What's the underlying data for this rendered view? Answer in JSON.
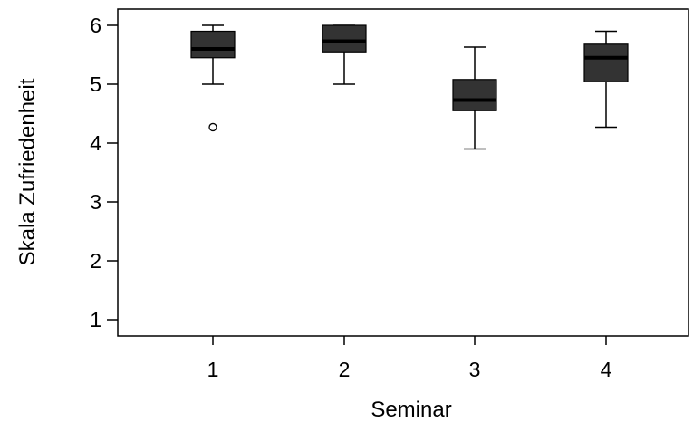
{
  "chart_data": {
    "type": "boxplot",
    "xlabel": "Seminar",
    "ylabel": "Skala Zufriedenheit",
    "categories": [
      "1",
      "2",
      "3",
      "4"
    ],
    "ylim": [
      0.6,
      6.25
    ],
    "yticks": [
      1,
      2,
      3,
      4,
      5,
      6
    ],
    "grid": false,
    "box_color": "#333333",
    "boxes": [
      {
        "category": "1",
        "whisker_low": 5.0,
        "q1": 5.45,
        "median": 5.6,
        "q3": 5.9,
        "whisker_high": 6.0,
        "outliers": [
          4.27
        ]
      },
      {
        "category": "2",
        "whisker_low": 5.0,
        "q1": 5.55,
        "median": 5.73,
        "q3": 6.0,
        "whisker_high": 6.0,
        "outliers": []
      },
      {
        "category": "3",
        "whisker_low": 3.9,
        "q1": 4.55,
        "median": 4.73,
        "q3": 5.08,
        "whisker_high": 5.63,
        "outliers": []
      },
      {
        "category": "4",
        "whisker_low": 4.27,
        "q1": 5.04,
        "median": 5.45,
        "q3": 5.68,
        "whisker_high": 5.9,
        "outliers": []
      }
    ]
  }
}
